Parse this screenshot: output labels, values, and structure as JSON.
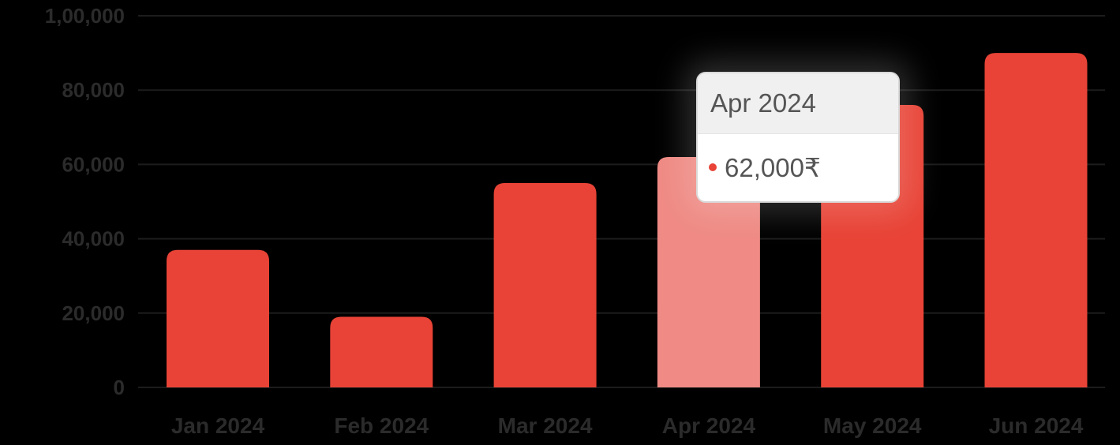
{
  "chart_data": {
    "type": "bar",
    "categories": [
      "Jan 2024",
      "Feb 2024",
      "Mar 2024",
      "Apr 2024",
      "May 2024",
      "Jun 2024"
    ],
    "values": [
      37000,
      19000,
      55000,
      62000,
      76000,
      90000
    ],
    "y_ticks": [
      "0",
      "20,000",
      "40,000",
      "60,000",
      "80,000",
      "1,00,000"
    ],
    "ylim": [
      0,
      100000
    ],
    "grid": true,
    "colors": {
      "bar": "#e84336",
      "bar_highlight": "#ef8a84",
      "background": "#000000"
    },
    "highlighted_index": 3
  },
  "tooltip": {
    "title": "Apr 2024",
    "value": "62,000₹",
    "dot_color": "#e84336"
  }
}
